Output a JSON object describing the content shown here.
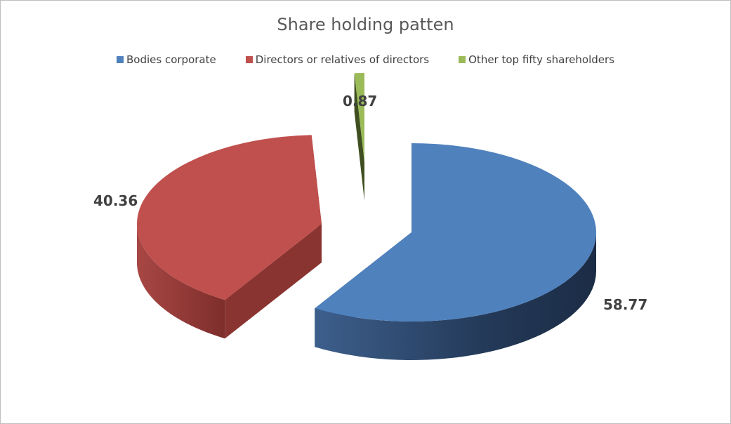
{
  "chart_data": {
    "type": "pie",
    "style": "3d-exploded",
    "title": "Share holding patten",
    "legend_position": "top",
    "series": [
      {
        "name": "Bodies corporate",
        "value": 58.77,
        "color": "#4F81BD",
        "label": "58.77"
      },
      {
        "name": "Directors or relatives of directors",
        "value": 40.36,
        "color": "#C0504D",
        "label": "40.36"
      },
      {
        "name": "Other top fifty shareholders",
        "value": 0.87,
        "color": "#9BBB59",
        "label": "0.87"
      }
    ]
  }
}
